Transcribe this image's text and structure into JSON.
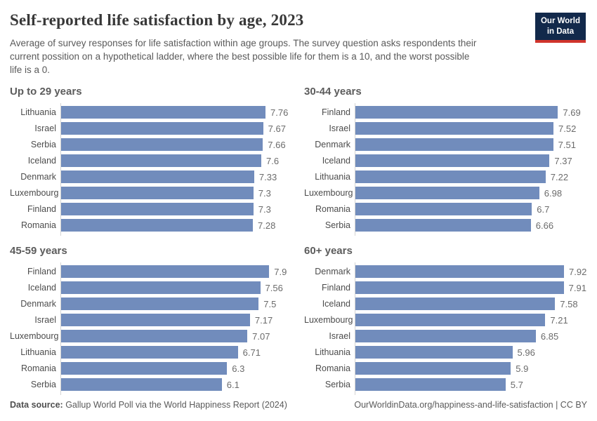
{
  "header": {
    "title": "Self-reported life satisfaction by age, 2023",
    "subtitle_lines": [
      "Average of survey responses for life satisfaction within age groups. The survey question asks respondents their",
      "current possition on a hypothetical ladder, where the best possible life for them is a 10, and the worst possible",
      "life is a 0."
    ],
    "logo": {
      "line1": "Our World",
      "line2": "in Data"
    }
  },
  "chart_data": {
    "type": "bar",
    "orientation": "horizontal",
    "title": "Self-reported life satisfaction by age, 2023",
    "xlabel": "",
    "ylabel": "",
    "xlim": [
      0,
      8
    ],
    "grid": false,
    "legend": "none",
    "bar_color": "#718cbc",
    "value_labels_shown": true,
    "panels": [
      {
        "title": "Up to 29 years",
        "categories": [
          "Lithuania",
          "Israel",
          "Serbia",
          "Iceland",
          "Denmark",
          "Luxembourg",
          "Finland",
          "Romania"
        ],
        "values": [
          7.76,
          7.67,
          7.66,
          7.6,
          7.33,
          7.3,
          7.3,
          7.28
        ]
      },
      {
        "title": "30-44 years",
        "categories": [
          "Finland",
          "Israel",
          "Denmark",
          "Iceland",
          "Lithuania",
          "Luxembourg",
          "Romania",
          "Serbia"
        ],
        "values": [
          7.69,
          7.52,
          7.51,
          7.37,
          7.22,
          6.98,
          6.7,
          6.66
        ]
      },
      {
        "title": "45-59 years",
        "categories": [
          "Finland",
          "Iceland",
          "Denmark",
          "Israel",
          "Luxembourg",
          "Lithuania",
          "Romania",
          "Serbia"
        ],
        "values": [
          7.9,
          7.56,
          7.5,
          7.17,
          7.07,
          6.71,
          6.3,
          6.1
        ]
      },
      {
        "title": "60+ years",
        "categories": [
          "Denmark",
          "Finland",
          "Iceland",
          "Luxembourg",
          "Israel",
          "Lithuania",
          "Romania",
          "Serbia"
        ],
        "values": [
          7.92,
          7.91,
          7.58,
          7.21,
          6.85,
          5.96,
          5.9,
          5.7
        ]
      }
    ]
  },
  "footer": {
    "source_label": "Data source:",
    "source_text": " Gallup World Poll via the World Happiness Report (2024)",
    "right_text": "OurWorldinData.org/happiness-and-life-satisfaction | CC BY"
  },
  "colors": {
    "bar": "#718cbc",
    "axis_line": "#d4d4d4",
    "title_text": "#383838",
    "subtitle_text": "#5a5a5a",
    "panel_title_text": "#5c5c5c",
    "country_label_text": "#4c4c4c",
    "value_label_text": "#6b6b6b",
    "logo_background": "#12294b",
    "logo_accent": "#d0342c"
  }
}
